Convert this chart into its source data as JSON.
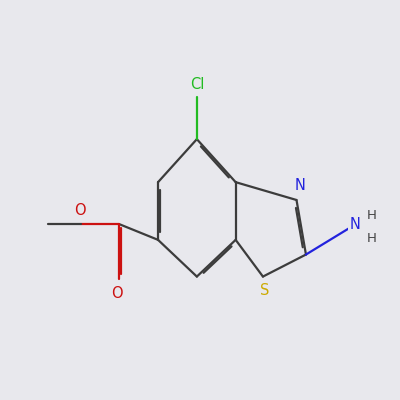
{
  "background_color": "#e8e8ed",
  "bond_color": "#3c3c3c",
  "bond_lw": 1.6,
  "dbo": 0.018,
  "colors": {
    "Cl": "#22bb22",
    "N": "#2222dd",
    "S": "#ccaa00",
    "O": "#cc1111",
    "C": "#3c3c3c"
  },
  "font_size": 10.5,
  "NH_color": "#444444"
}
